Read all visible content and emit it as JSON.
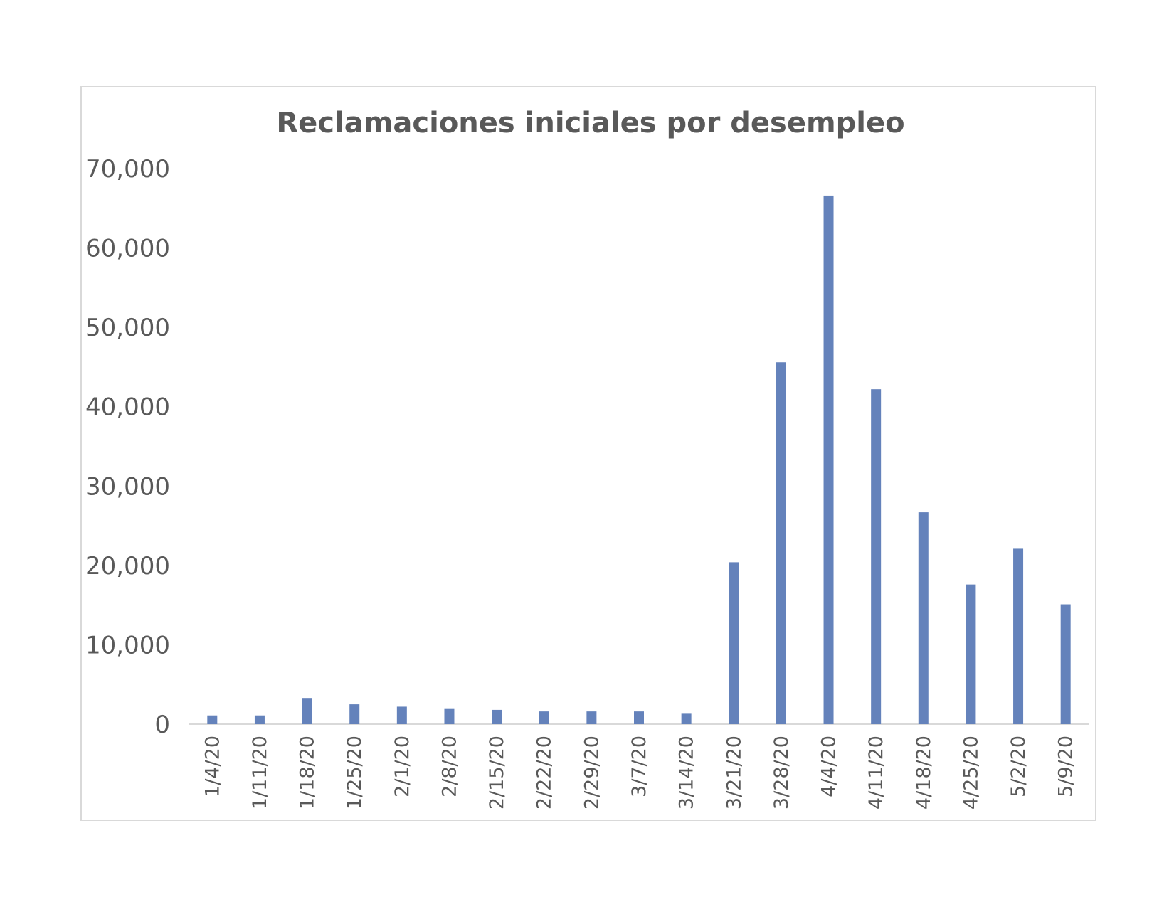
{
  "chart_data": {
    "type": "bar",
    "title": "Reclamaciones iniciales por desempleo",
    "xlabel": "",
    "ylabel": "",
    "ylim": [
      0,
      70000
    ],
    "yticks": [
      "0",
      "10,000",
      "20,000",
      "30,000",
      "40,000",
      "50,000",
      "60,000",
      "70,000"
    ],
    "grid": false,
    "legend": "none",
    "bar_color": "#6482bb",
    "axis_color": "#d9d9d9",
    "categories": [
      "1/4/20",
      "1/11/20",
      "1/18/20",
      "1/25/20",
      "2/1/20",
      "2/8/20",
      "2/15/20",
      "2/22/20",
      "2/29/20",
      "3/7/20",
      "3/14/20",
      "3/21/20",
      "3/28/20",
      "4/4/20",
      "4/11/20",
      "4/18/20",
      "4/25/20",
      "5/2/20",
      "5/9/20"
    ],
    "values": [
      1100,
      1100,
      3300,
      2500,
      2200,
      2000,
      1800,
      1600,
      1600,
      1600,
      1400,
      20400,
      45600,
      66600,
      42200,
      26700,
      17600,
      22100,
      15100
    ]
  }
}
